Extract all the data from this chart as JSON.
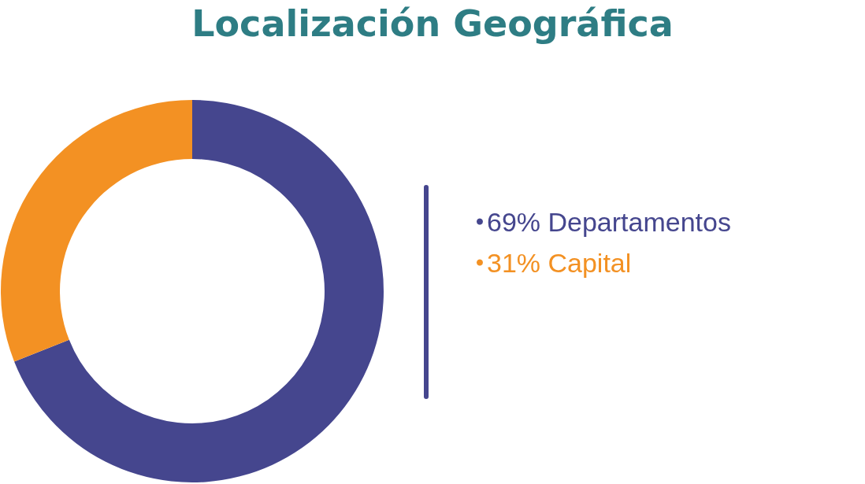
{
  "chart_data": {
    "type": "donut",
    "title": "Localización Geográfica",
    "categories": [
      "Departamentos",
      "Capital"
    ],
    "values": [
      69,
      31
    ],
    "colors": [
      "#45468e",
      "#f39123"
    ],
    "value_labels": [
      "69%",
      "31%"
    ],
    "legend": "right"
  }
}
